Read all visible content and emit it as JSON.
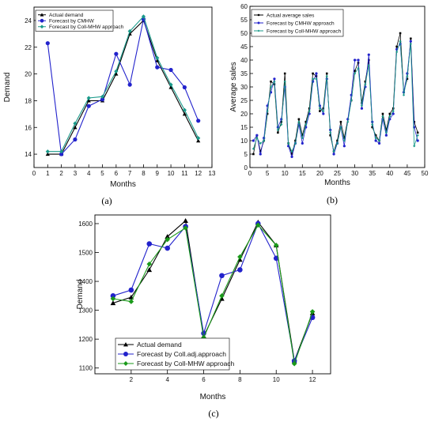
{
  "chart_data": [
    {
      "type": "line",
      "panel": "(a)",
      "xlabel": "Months",
      "ylabel": "Demand",
      "xlim": [
        0,
        13
      ],
      "ylim": [
        13,
        25
      ],
      "xticks": [
        0,
        1,
        2,
        3,
        4,
        5,
        6,
        7,
        8,
        9,
        10,
        11,
        12,
        13
      ],
      "yticks": [
        14,
        16,
        18,
        20,
        22,
        24
      ],
      "legend": "top-left",
      "x": [
        1,
        2,
        3,
        4,
        5,
        6,
        7,
        8,
        9,
        10,
        11,
        12
      ],
      "series": [
        {
          "name": "Actual demand",
          "color": "#000000",
          "marker": "triangle",
          "values": [
            14.0,
            14.0,
            16.0,
            18.0,
            18.0,
            20.0,
            23.0,
            24.0,
            21.0,
            19.0,
            17.0,
            15.0
          ]
        },
        {
          "name": "Forecast by CMHW",
          "color": "#2222cc",
          "marker": "circle",
          "values": [
            22.3,
            14.0,
            15.1,
            17.6,
            18.1,
            21.5,
            19.2,
            24.1,
            20.5,
            20.3,
            19.0,
            16.5
          ]
        },
        {
          "name": "Forecast by Coll-MHW approach",
          "color": "#1a9a8a",
          "marker": "diamond",
          "values": [
            14.2,
            14.2,
            16.3,
            18.2,
            18.3,
            20.2,
            23.2,
            24.3,
            21.2,
            19.2,
            17.3,
            15.2
          ]
        }
      ]
    },
    {
      "type": "line",
      "panel": "(b)",
      "xlabel": "Months",
      "ylabel": "Average sales",
      "xlim": [
        0,
        50
      ],
      "ylim": [
        0,
        60
      ],
      "xticks": [
        0,
        5,
        10,
        15,
        20,
        25,
        30,
        35,
        40,
        45,
        50
      ],
      "yticks": [
        0,
        5,
        10,
        15,
        20,
        25,
        30,
        35,
        40,
        45,
        50,
        55,
        60
      ],
      "legend": "top-left",
      "x": [
        1,
        2,
        3,
        4,
        5,
        6,
        7,
        8,
        9,
        10,
        11,
        12,
        13,
        14,
        15,
        16,
        17,
        18,
        19,
        20,
        21,
        22,
        23,
        24,
        25,
        26,
        27,
        28,
        29,
        30,
        31,
        32,
        33,
        34,
        35,
        36,
        37,
        38,
        39,
        40,
        41,
        42,
        43,
        44,
        45,
        46,
        47,
        48
      ],
      "series": [
        {
          "name": "Actual average sales",
          "color": "#000000",
          "marker": "square",
          "values": [
            5,
            12,
            6,
            10,
            20,
            32,
            31,
            13,
            17,
            35,
            9,
            5,
            10,
            18,
            12,
            17,
            22,
            35,
            34,
            21,
            22,
            35,
            12,
            6,
            10,
            17,
            11,
            18,
            25,
            36,
            39,
            24,
            32,
            40,
            15,
            12,
            10,
            20,
            14,
            20,
            22,
            45,
            50,
            28,
            33,
            48,
            17,
            13
          ]
        },
        {
          "name": "Forecast by CMHW approach",
          "color": "#2222cc",
          "marker": "circle",
          "values": [
            10,
            12,
            5,
            11,
            23,
            28,
            33,
            15,
            18,
            30,
            8,
            4,
            9,
            16,
            9,
            15,
            20,
            32,
            35,
            23,
            20,
            33,
            14,
            5,
            9,
            15,
            8,
            18,
            27,
            40,
            40,
            22,
            30,
            42,
            17,
            10,
            9,
            18,
            12,
            18,
            20,
            44,
            46,
            28,
            35,
            47,
            15,
            10
          ]
        },
        {
          "name": "Forecast by Coll-MHW approach",
          "color": "#1a9a8a",
          "marker": "diamond",
          "values": [
            7,
            11,
            9,
            10,
            21,
            30,
            32,
            14,
            16,
            32,
            9,
            6,
            9,
            17,
            11,
            16,
            21,
            33,
            33,
            22,
            21,
            34,
            13,
            6,
            9,
            15,
            10,
            17,
            25,
            35,
            37,
            23,
            31,
            38,
            16,
            11,
            10,
            19,
            13,
            19,
            21,
            43,
            47,
            27,
            34,
            46,
            8,
            12
          ]
        }
      ]
    },
    {
      "type": "line",
      "panel": "(c)",
      "xlabel": "Months",
      "ylabel": "Demand",
      "xlim": [
        0,
        13
      ],
      "ylim": [
        1080,
        1630
      ],
      "xticks": [
        2,
        4,
        6,
        8,
        10,
        12
      ],
      "yticks": [
        1100,
        1200,
        1300,
        1400,
        1500,
        1600
      ],
      "legend": "bottom-left",
      "x": [
        1,
        2,
        3,
        4,
        5,
        6,
        7,
        8,
        9,
        10,
        11,
        12
      ],
      "series": [
        {
          "name": "Actual demand",
          "color": "#000000",
          "marker": "triangle",
          "values": [
            1325,
            1345,
            1440,
            1555,
            1610,
            1210,
            1340,
            1475,
            1605,
            1525,
            1125,
            1290
          ]
        },
        {
          "name": "Forecast by Coll.adj.approach",
          "color": "#2222cc",
          "marker": "circle",
          "values": [
            1350,
            1370,
            1530,
            1515,
            1590,
            1220,
            1420,
            1440,
            1600,
            1480,
            1125,
            1275
          ]
        },
        {
          "name": "Forecast by Coll-MHW approach",
          "color": "#1a9a1a",
          "marker": "diamond",
          "values": [
            1340,
            1330,
            1460,
            1545,
            1585,
            1205,
            1350,
            1485,
            1595,
            1525,
            1115,
            1295
          ]
        }
      ]
    }
  ]
}
